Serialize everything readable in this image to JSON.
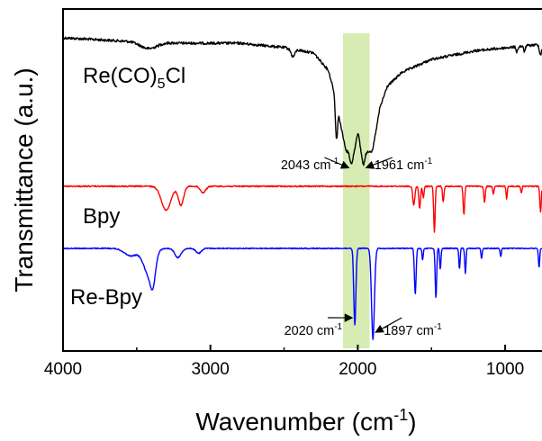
{
  "chart_data": {
    "type": "line",
    "title": "",
    "xlabel": "Wavenumber (cm",
    "xlabel_sup": "-1",
    "xlabel_tail": ")",
    "ylabel": "Transmittance (a.u.)",
    "xlim": [
      4000,
      750
    ],
    "x_reversed": true,
    "xticks": [
      4000,
      3000,
      2000,
      1000
    ],
    "y_ticks_shown": false,
    "grid": false,
    "highlight_band": {
      "x": [
        2100,
        1920
      ],
      "color": "#d6ecb2"
    },
    "series": [
      {
        "name": "Re(CO)5Cl",
        "label_main": "Re(CO)",
        "label_sub": "5",
        "label_tail": "Cl",
        "color": "#000000",
        "baseline": 0.0,
        "noise": 0.012,
        "slope": [
          [
            4000,
            0.0
          ],
          [
            3600,
            0.03
          ],
          [
            3200,
            0.05
          ],
          [
            2800,
            0.05
          ],
          [
            2500,
            0.09
          ],
          [
            2300,
            0.14
          ],
          [
            2200,
            0.3
          ],
          [
            2150,
            0.55
          ],
          [
            2110,
            0.85
          ],
          [
            2080,
            1.05
          ],
          [
            1900,
            1.05
          ],
          [
            1850,
            0.65
          ],
          [
            1800,
            0.45
          ],
          [
            1700,
            0.32
          ],
          [
            1500,
            0.2
          ],
          [
            1200,
            0.12
          ],
          [
            900,
            0.08
          ],
          [
            750,
            0.06
          ]
        ],
        "peaks": [
          {
            "x": 3420,
            "depth": 0.06,
            "width": 80
          },
          {
            "x": 2440,
            "depth": 0.07,
            "width": 18
          },
          {
            "x": 2145,
            "depth": 0.35,
            "width": 10
          },
          {
            "x": 2043,
            "depth": 0.12,
            "width": 14
          },
          {
            "x": 1961,
            "depth": 0.12,
            "width": 14
          },
          {
            "x": 920,
            "depth": 0.05,
            "width": 8
          },
          {
            "x": 870,
            "depth": 0.05,
            "width": 8
          },
          {
            "x": 760,
            "depth": 0.1,
            "width": 10
          }
        ],
        "bumps": [
          {
            "x": 2000,
            "height": 0.16,
            "width": 16
          }
        ]
      },
      {
        "name": "Bpy",
        "label_main": "Bpy",
        "color": "#ff0000",
        "baseline": 0.0,
        "noise": 0.01,
        "slope": [
          [
            4000,
            0.0
          ],
          [
            750,
            0.0
          ]
        ],
        "peaks": [
          {
            "x": 3300,
            "depth": 0.38,
            "width": 45
          },
          {
            "x": 3200,
            "depth": 0.3,
            "width": 25
          },
          {
            "x": 3050,
            "depth": 0.1,
            "width": 25
          },
          {
            "x": 1620,
            "depth": 0.3,
            "width": 10
          },
          {
            "x": 1580,
            "depth": 0.35,
            "width": 8
          },
          {
            "x": 1555,
            "depth": 0.18,
            "width": 7
          },
          {
            "x": 1480,
            "depth": 0.72,
            "width": 7
          },
          {
            "x": 1420,
            "depth": 0.25,
            "width": 7
          },
          {
            "x": 1280,
            "depth": 0.45,
            "width": 7
          },
          {
            "x": 1140,
            "depth": 0.25,
            "width": 7
          },
          {
            "x": 1080,
            "depth": 0.12,
            "width": 6
          },
          {
            "x": 990,
            "depth": 0.2,
            "width": 6
          },
          {
            "x": 890,
            "depth": 0.1,
            "width": 6
          },
          {
            "x": 760,
            "depth": 0.4,
            "width": 7
          }
        ],
        "bumps": []
      },
      {
        "name": "Re-Bpy",
        "label_main": "Re-Bpy",
        "color": "#0000ff",
        "baseline": 0.0,
        "noise": 0.012,
        "slope": [
          [
            4000,
            0.0
          ],
          [
            750,
            0.0
          ]
        ],
        "peaks": [
          {
            "x": 3540,
            "depth": 0.18,
            "width": 60
          },
          {
            "x": 3420,
            "depth": 0.6,
            "width": 50
          },
          {
            "x": 3390,
            "depth": 0.55,
            "width": 25
          },
          {
            "x": 3220,
            "depth": 0.22,
            "width": 30
          },
          {
            "x": 3080,
            "depth": 0.12,
            "width": 25
          },
          {
            "x": 2020,
            "depth": 1.85,
            "width": 10
          },
          {
            "x": 1897,
            "depth": 2.2,
            "width": 14
          },
          {
            "x": 1610,
            "depth": 1.1,
            "width": 8
          },
          {
            "x": 1560,
            "depth": 0.28,
            "width": 6
          },
          {
            "x": 1470,
            "depth": 1.2,
            "width": 7
          },
          {
            "x": 1440,
            "depth": 0.5,
            "width": 6
          },
          {
            "x": 1310,
            "depth": 0.5,
            "width": 6
          },
          {
            "x": 1270,
            "depth": 0.6,
            "width": 6
          },
          {
            "x": 1160,
            "depth": 0.25,
            "width": 6
          },
          {
            "x": 1030,
            "depth": 0.2,
            "width": 6
          },
          {
            "x": 770,
            "depth": 0.45,
            "width": 6
          }
        ],
        "bumps": []
      }
    ],
    "annotations": [
      {
        "text": "2043 cm",
        "sup": "-1",
        "target_x": 2043,
        "series": "Re(CO)5Cl",
        "side": "left"
      },
      {
        "text": "1961 cm",
        "sup": "-1",
        "target_x": 1961,
        "series": "Re(CO)5Cl",
        "side": "right"
      },
      {
        "text": "2020 cm",
        "sup": "-1",
        "target_x": 2020,
        "series": "Re-Bpy",
        "side": "left"
      },
      {
        "text": "1897 cm",
        "sup": "-1",
        "target_x": 1897,
        "series": "Re-Bpy",
        "side": "right"
      }
    ]
  }
}
